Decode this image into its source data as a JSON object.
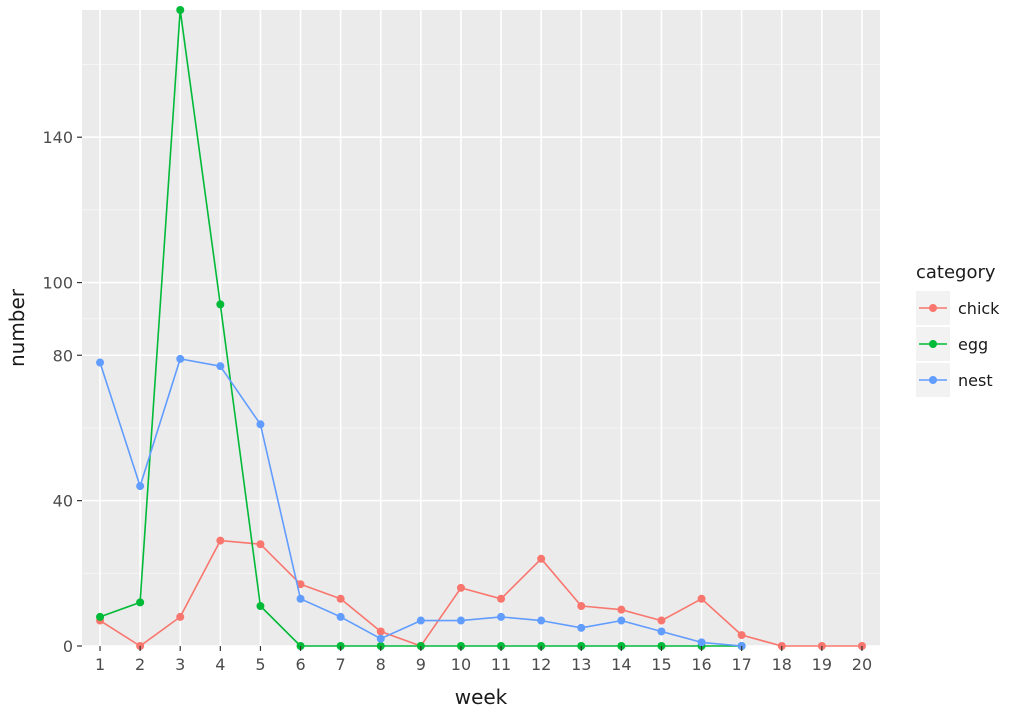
{
  "chart_data": {
    "type": "line",
    "xlabel": "week",
    "ylabel": "number",
    "x": [
      1,
      2,
      3,
      4,
      5,
      6,
      7,
      8,
      9,
      10,
      11,
      12,
      13,
      14,
      15,
      16,
      17,
      18,
      19,
      20
    ],
    "xticks": [
      "1",
      "2",
      "3",
      "4",
      "5",
      "6",
      "7",
      "8",
      "9",
      "10",
      "11",
      "12",
      "13",
      "14",
      "15",
      "16",
      "17",
      "18",
      "19",
      "20"
    ],
    "yticks": [
      0,
      40,
      80,
      100,
      140
    ],
    "ylim": [
      0,
      175
    ],
    "grid": true,
    "legend": {
      "title": "category",
      "position": "right",
      "entries": [
        "chick",
        "egg",
        "nest"
      ]
    },
    "series": [
      {
        "name": "chick",
        "color": "#F8766D",
        "x": [
          1,
          2,
          3,
          4,
          5,
          6,
          7,
          8,
          9,
          10,
          11,
          12,
          13,
          14,
          15,
          16,
          17,
          18,
          19,
          20
        ],
        "values": [
          7,
          0,
          8,
          29,
          28,
          17,
          13,
          4,
          0,
          16,
          13,
          24,
          11,
          10,
          7,
          13,
          3,
          0,
          0,
          0
        ]
      },
      {
        "name": "egg",
        "color": "#00BA38",
        "x": [
          1,
          2,
          3,
          4,
          5,
          6,
          7,
          8,
          9,
          10,
          11,
          12,
          13,
          14,
          15,
          16,
          17
        ],
        "values": [
          8,
          12,
          175,
          94,
          11,
          0,
          0,
          0,
          0,
          0,
          0,
          0,
          0,
          0,
          0,
          0,
          0
        ]
      },
      {
        "name": "nest",
        "color": "#619CFF",
        "x": [
          1,
          2,
          3,
          4,
          5,
          6,
          7,
          8,
          9,
          10,
          11,
          12,
          13,
          14,
          15,
          16,
          17
        ],
        "values": [
          78,
          44,
          79,
          77,
          61,
          13,
          8,
          2,
          7,
          7,
          8,
          7,
          5,
          7,
          4,
          1,
          0
        ]
      }
    ]
  }
}
